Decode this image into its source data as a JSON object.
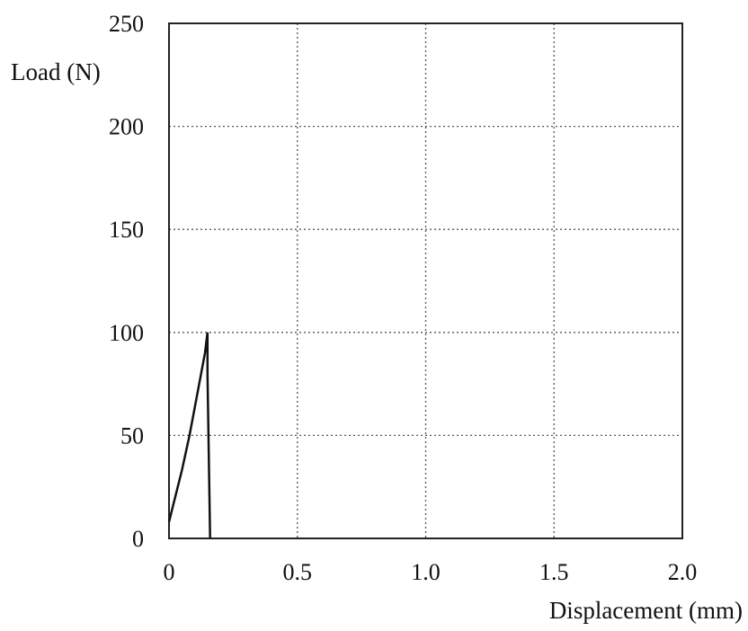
{
  "chart_data": {
    "type": "line",
    "xlabel": "Displacement (mm)",
    "ylabel": "Load (N)",
    "xlim": [
      0,
      2.0
    ],
    "ylim": [
      0,
      250
    ],
    "x_ticks": [
      0,
      0.5,
      1.0,
      1.5,
      2.0
    ],
    "x_tick_labels": [
      "0",
      "0.5",
      "1.0",
      "1.5",
      "2.0"
    ],
    "y_ticks": [
      0,
      50,
      100,
      150,
      200,
      250
    ],
    "y_tick_labels": [
      "0",
      "50",
      "100",
      "150",
      "200",
      "250"
    ],
    "grid": true,
    "series": [
      {
        "color": "#111111",
        "points": [
          [
            0.0,
            8
          ],
          [
            0.02,
            18
          ],
          [
            0.05,
            33
          ],
          [
            0.08,
            50
          ],
          [
            0.11,
            70
          ],
          [
            0.14,
            90
          ],
          [
            0.15,
            100
          ],
          [
            0.15,
            80
          ],
          [
            0.16,
            0
          ]
        ]
      }
    ]
  }
}
